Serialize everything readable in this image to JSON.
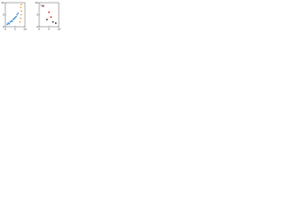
{
  "chart_data": [
    {
      "type": "scatter",
      "xlim": [
        0,
        10
      ],
      "ylim": [
        0,
        10
      ],
      "xticks": [
        0,
        5,
        10
      ],
      "yticks": [
        0,
        5,
        10
      ],
      "series": [
        {
          "color": "#4a90d9",
          "x": [
            1,
            1.5,
            2,
            2.5,
            3,
            3.5,
            4,
            4.5,
            5,
            5.5,
            6,
            6.5
          ],
          "values": [
            1,
            1.5,
            1.2,
            2,
            2.4,
            2.2,
            3,
            3.4,
            3.8,
            4.2,
            5,
            5.6
          ]
        },
        {
          "color": "#f0a040",
          "x": [
            7.5,
            7.8,
            8,
            8.2,
            7.9,
            8.1
          ],
          "values": [
            2,
            3.5,
            5,
            6.5,
            8,
            9.2
          ]
        }
      ]
    },
    {
      "type": "scatter",
      "label": "(b)",
      "xlim": [
        0,
        10
      ],
      "ylim": [
        0,
        10
      ],
      "xticks": [
        0,
        5,
        10
      ],
      "yticks": [
        0,
        5,
        10
      ],
      "series": [
        {
          "color": "#e02020",
          "x": [
            2,
            5,
            6
          ],
          "values": [
            8.5,
            6,
            4
          ]
        },
        {
          "color": "#222222",
          "x": [
            4,
            7,
            8.5
          ],
          "values": [
            3,
            2,
            1.5
          ]
        }
      ]
    }
  ]
}
